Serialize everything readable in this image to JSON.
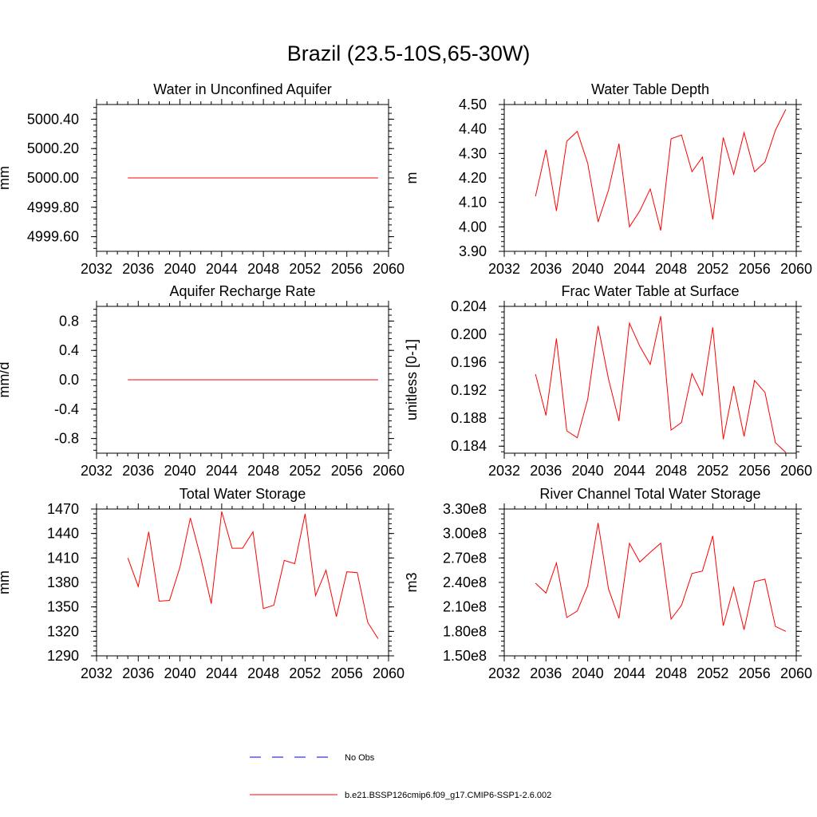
{
  "title": "Brazil (23.5-10S,65-30W)",
  "colors": {
    "model": "#ff0000",
    "obs": "#0000cc",
    "axis": "#000000"
  },
  "legend": {
    "obs_label": "No Obs",
    "model_label": "b.e21.BSSP126cmip6.f09_g17.CMIP6-SSP1-2.6.002"
  },
  "chart_data": [
    {
      "type": "line",
      "title": "Water in Unconfined Aquifer",
      "ylabel": "mm",
      "xlim": [
        2032,
        2060
      ],
      "xticks": [
        "2032",
        "2036",
        "2040",
        "2044",
        "2048",
        "2052",
        "2056",
        "2060"
      ],
      "ylim": [
        4999.5,
        5000.5
      ],
      "yticks": [
        4999.6,
        4999.8,
        5000.0,
        5000.2,
        5000.4
      ],
      "ytick_labels": [
        "4999.60",
        "4999.80",
        "5000.00",
        "5000.20",
        "5000.40"
      ],
      "x": [
        2035,
        2036,
        2037,
        2038,
        2039,
        2040,
        2041,
        2042,
        2043,
        2044,
        2045,
        2046,
        2047,
        2048,
        2049,
        2050,
        2051,
        2052,
        2053,
        2054,
        2055,
        2056,
        2057,
        2058,
        2059
      ],
      "series": [
        {
          "values": [
            5000,
            5000,
            5000,
            5000,
            5000,
            5000,
            5000,
            5000,
            5000,
            5000,
            5000,
            5000,
            5000,
            5000,
            5000,
            5000,
            5000,
            5000,
            5000,
            5000,
            5000,
            5000,
            5000,
            5000,
            5000
          ]
        }
      ]
    },
    {
      "type": "line",
      "title": "Water Table Depth",
      "ylabel": "m",
      "xlim": [
        2032,
        2060
      ],
      "xticks": [
        "2032",
        "2036",
        "2040",
        "2044",
        "2048",
        "2052",
        "2056",
        "2060"
      ],
      "ylim": [
        3.9,
        4.5
      ],
      "yticks": [
        3.9,
        4.0,
        4.1,
        4.2,
        4.3,
        4.4,
        4.5
      ],
      "ytick_labels": [
        "3.90",
        "4.00",
        "4.10",
        "4.20",
        "4.30",
        "4.40",
        "4.50"
      ],
      "x": [
        2035,
        2036,
        2037,
        2038,
        2039,
        2040,
        2041,
        2042,
        2043,
        2044,
        2045,
        2046,
        2047,
        2048,
        2049,
        2050,
        2051,
        2052,
        2053,
        2054,
        2055,
        2056,
        2057,
        2058,
        2059
      ],
      "series": [
        {
          "values": [
            4.125,
            4.315,
            4.065,
            4.35,
            4.39,
            4.26,
            4.02,
            4.15,
            4.34,
            4.0,
            4.065,
            4.155,
            3.985,
            4.36,
            4.375,
            4.225,
            4.285,
            4.03,
            4.365,
            4.215,
            4.385,
            4.225,
            4.265,
            4.395,
            4.48
          ]
        }
      ]
    },
    {
      "type": "line",
      "title": "Aquifer Recharge Rate",
      "ylabel": "mm/d",
      "xlim": [
        2032,
        2060
      ],
      "xticks": [
        "2032",
        "2036",
        "2040",
        "2044",
        "2048",
        "2052",
        "2056",
        "2060"
      ],
      "ylim": [
        -1.0,
        1.0
      ],
      "yticks": [
        -0.8,
        -0.4,
        0.0,
        0.4,
        0.8
      ],
      "ytick_labels": [
        "-0.8",
        "-0.4",
        "0.0",
        "0.4",
        "0.8"
      ],
      "x": [
        2035,
        2036,
        2037,
        2038,
        2039,
        2040,
        2041,
        2042,
        2043,
        2044,
        2045,
        2046,
        2047,
        2048,
        2049,
        2050,
        2051,
        2052,
        2053,
        2054,
        2055,
        2056,
        2057,
        2058,
        2059
      ],
      "series": [
        {
          "values": [
            0,
            0,
            0,
            0,
            0,
            0,
            0,
            0,
            0,
            0,
            0,
            0,
            0,
            0,
            0,
            0,
            0,
            0,
            0,
            0,
            0,
            0,
            0,
            0,
            0
          ]
        }
      ]
    },
    {
      "type": "line",
      "title": "Frac Water Table at Surface",
      "ylabel": "unitless [0-1]",
      "xlim": [
        2032,
        2060
      ],
      "xticks": [
        "2032",
        "2036",
        "2040",
        "2044",
        "2048",
        "2052",
        "2056",
        "2060"
      ],
      "ylim": [
        0.183,
        0.204
      ],
      "yticks": [
        0.184,
        0.188,
        0.192,
        0.196,
        0.2,
        0.204
      ],
      "ytick_labels": [
        "0.184",
        "0.188",
        "0.192",
        "0.196",
        "0.200",
        "0.204"
      ],
      "x": [
        2035,
        2036,
        2037,
        2038,
        2039,
        2040,
        2041,
        2042,
        2043,
        2044,
        2045,
        2046,
        2047,
        2048,
        2049,
        2050,
        2051,
        2052,
        2053,
        2054,
        2055,
        2056,
        2057,
        2058,
        2059
      ],
      "series": [
        {
          "values": [
            0.1943,
            0.1884,
            0.1994,
            0.1862,
            0.1852,
            0.1907,
            0.2012,
            0.1936,
            0.1876,
            0.2016,
            0.1983,
            0.1957,
            0.2026,
            0.1863,
            0.1874,
            0.1944,
            0.1913,
            0.201,
            0.185,
            0.1926,
            0.1854,
            0.1934,
            0.1917,
            0.1845,
            0.1831
          ]
        }
      ]
    },
    {
      "type": "line",
      "title": "Total Water Storage",
      "ylabel": "mm",
      "xlim": [
        2032,
        2060
      ],
      "xticks": [
        "2032",
        "2036",
        "2040",
        "2044",
        "2048",
        "2052",
        "2056",
        "2060"
      ],
      "ylim": [
        1290,
        1470
      ],
      "yticks": [
        1290,
        1320,
        1350,
        1380,
        1410,
        1440,
        1470
      ],
      "ytick_labels": [
        "1290",
        "1320",
        "1350",
        "1380",
        "1410",
        "1440",
        "1470"
      ],
      "x": [
        2035,
        2036,
        2037,
        2038,
        2039,
        2040,
        2041,
        2042,
        2043,
        2044,
        2045,
        2046,
        2047,
        2048,
        2049,
        2050,
        2051,
        2052,
        2053,
        2054,
        2055,
        2056,
        2057,
        2058,
        2059
      ],
      "series": [
        {
          "values": [
            1410,
            1375,
            1442,
            1357,
            1358,
            1399,
            1459,
            1410,
            1354,
            1467,
            1422,
            1422,
            1442,
            1348,
            1352,
            1407,
            1403,
            1464,
            1364,
            1395,
            1338,
            1393,
            1392,
            1331,
            1311
          ]
        }
      ]
    },
    {
      "type": "line",
      "title": "River Channel Total Water Storage",
      "ylabel": "m3",
      "xlim": [
        2032,
        2060
      ],
      "xticks": [
        "2032",
        "2036",
        "2040",
        "2044",
        "2048",
        "2052",
        "2056",
        "2060"
      ],
      "ylim": [
        150000000,
        330000000
      ],
      "yticks": [
        150000000,
        180000000,
        210000000,
        240000000,
        270000000,
        300000000,
        330000000
      ],
      "ytick_labels": [
        "1.50e8",
        "1.80e8",
        "2.10e8",
        "2.40e8",
        "2.70e8",
        "3.00e8",
        "3.30e8"
      ],
      "x": [
        2035,
        2036,
        2037,
        2038,
        2039,
        2040,
        2041,
        2042,
        2043,
        2044,
        2045,
        2046,
        2047,
        2048,
        2049,
        2050,
        2051,
        2052,
        2053,
        2054,
        2055,
        2056,
        2057,
        2058,
        2059
      ],
      "series": [
        {
          "values": [
            239000000,
            227000000,
            264000000,
            197000000,
            205000000,
            236000000,
            313000000,
            232000000,
            196000000,
            288000000,
            265000000,
            277000000,
            288000000,
            195000000,
            212000000,
            251000000,
            254000000,
            297000000,
            187000000,
            234000000,
            182000000,
            241000000,
            244000000,
            186000000,
            180000000
          ]
        }
      ]
    }
  ]
}
